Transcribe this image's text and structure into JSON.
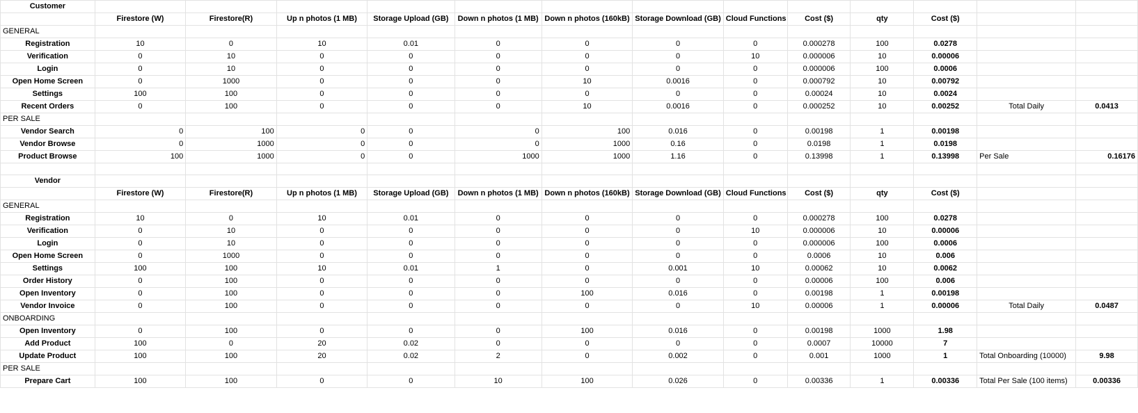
{
  "customer": {
    "title": "Customer",
    "headers": [
      "",
      "Firestore (W)",
      "Firestore(R)",
      "Up n photos (1 MB)",
      "Storage Upload (GB)",
      "Down n photos (1 MB)",
      "Down n photos (160kB)",
      "Storage Download (GB)",
      "Cloud Functions",
      "Cost ($)",
      "qty",
      "Cost ($)",
      "",
      ""
    ],
    "sections": [
      {
        "label": "GENERAL",
        "rows": [
          [
            "Registration",
            "10",
            "0",
            "10",
            "0.01",
            "0",
            "0",
            "0",
            "0",
            "0.000278",
            "100",
            "0.0278",
            "",
            ""
          ],
          [
            "Verification",
            "0",
            "10",
            "0",
            "0",
            "0",
            "0",
            "0",
            "10",
            "0.000006",
            "10",
            "0.00006",
            "",
            ""
          ],
          [
            "Login",
            "0",
            "10",
            "0",
            "0",
            "0",
            "0",
            "0",
            "0",
            "0.000006",
            "100",
            "0.0006",
            "",
            ""
          ],
          [
            "Open Home Screen",
            "0",
            "1000",
            "0",
            "0",
            "0",
            "10",
            "0.0016",
            "0",
            "0.000792",
            "10",
            "0.00792",
            "",
            ""
          ],
          [
            "Settings",
            "100",
            "100",
            "0",
            "0",
            "0",
            "0",
            "0",
            "0",
            "0.00024",
            "10",
            "0.0024",
            "",
            ""
          ],
          [
            "Recent Orders",
            "0",
            "100",
            "0",
            "0",
            "0",
            "10",
            "0.0016",
            "0",
            "0.000252",
            "10",
            "0.00252",
            "Total Daily",
            "0.0413"
          ]
        ]
      },
      {
        "label": "PER SALE",
        "rows": [
          [
            "Vendor Search",
            "0",
            "100",
            "0",
            "0",
            "0",
            "100",
            "0.016",
            "0",
            "0.00198",
            "1",
            "0.00198",
            "",
            ""
          ],
          [
            "Vendor Browse",
            "0",
            "1000",
            "0",
            "0",
            "0",
            "1000",
            "0.16",
            "0",
            "0.0198",
            "1",
            "0.0198",
            "",
            ""
          ],
          [
            "Product Browse",
            "100",
            "1000",
            "0",
            "0",
            "1000",
            "1000",
            "1.16",
            "0",
            "0.13998",
            "1",
            "0.13998",
            "Per Sale",
            "0.16176"
          ]
        ]
      }
    ]
  },
  "vendor": {
    "title": "Vendor",
    "headers": [
      "",
      "Firestore (W)",
      "Firestore(R)",
      "Up n photos (1 MB)",
      "Storage Upload (GB)",
      "Down n photos (1 MB)",
      "Down n photos (160kB)",
      "Storage Download (GB)",
      "Cloud Functions",
      "Cost ($)",
      "qty",
      "Cost ($)",
      "",
      ""
    ],
    "sections": [
      {
        "label": "GENERAL",
        "rows": [
          [
            "Registration",
            "10",
            "0",
            "10",
            "0.01",
            "0",
            "0",
            "0",
            "0",
            "0.000278",
            "100",
            "0.0278",
            "",
            ""
          ],
          [
            "Verification",
            "0",
            "10",
            "0",
            "0",
            "0",
            "0",
            "0",
            "10",
            "0.000006",
            "10",
            "0.00006",
            "",
            ""
          ],
          [
            "Login",
            "0",
            "10",
            "0",
            "0",
            "0",
            "0",
            "0",
            "0",
            "0.000006",
            "100",
            "0.0006",
            "",
            ""
          ],
          [
            "Open Home Screen",
            "0",
            "1000",
            "0",
            "0",
            "0",
            "0",
            "0",
            "0",
            "0.0006",
            "10",
            "0.006",
            "",
            ""
          ],
          [
            "Settings",
            "100",
            "100",
            "10",
            "0.01",
            "1",
            "0",
            "0.001",
            "10",
            "0.00062",
            "10",
            "0.0062",
            "",
            ""
          ],
          [
            "Order History",
            "0",
            "100",
            "0",
            "0",
            "0",
            "0",
            "0",
            "0",
            "0.00006",
            "100",
            "0.006",
            "",
            ""
          ],
          [
            "Open Inventory",
            "0",
            "100",
            "0",
            "0",
            "0",
            "100",
            "0.016",
            "0",
            "0.00198",
            "1",
            "0.00198",
            "",
            ""
          ],
          [
            "Vendor Invoice",
            "0",
            "100",
            "0",
            "0",
            "0",
            "0",
            "0",
            "10",
            "0.00006",
            "1",
            "0.00006",
            "Total Daily",
            "0.0487"
          ]
        ]
      },
      {
        "label": "ONBOARDING",
        "rows": [
          [
            "Open Inventory",
            "0",
            "100",
            "0",
            "0",
            "0",
            "100",
            "0.016",
            "0",
            "0.00198",
            "1000",
            "1.98",
            "",
            ""
          ],
          [
            "Add Product",
            "100",
            "0",
            "20",
            "0.02",
            "0",
            "0",
            "0",
            "0",
            "0.0007",
            "10000",
            "7",
            "",
            ""
          ],
          [
            "Update Product",
            "100",
            "100",
            "20",
            "0.02",
            "2",
            "0",
            "0.002",
            "0",
            "0.001",
            "1000",
            "1",
            "Total Onboarding (10000)",
            "9.98"
          ]
        ]
      },
      {
        "label": "PER SALE",
        "rows": [
          [
            "Prepare Cart",
            "100",
            "100",
            "0",
            "0",
            "10",
            "100",
            "0.026",
            "0",
            "0.00336",
            "1",
            "0.00336",
            "Total Per Sale (100 items)",
            "0.00336"
          ]
        ]
      }
    ]
  }
}
